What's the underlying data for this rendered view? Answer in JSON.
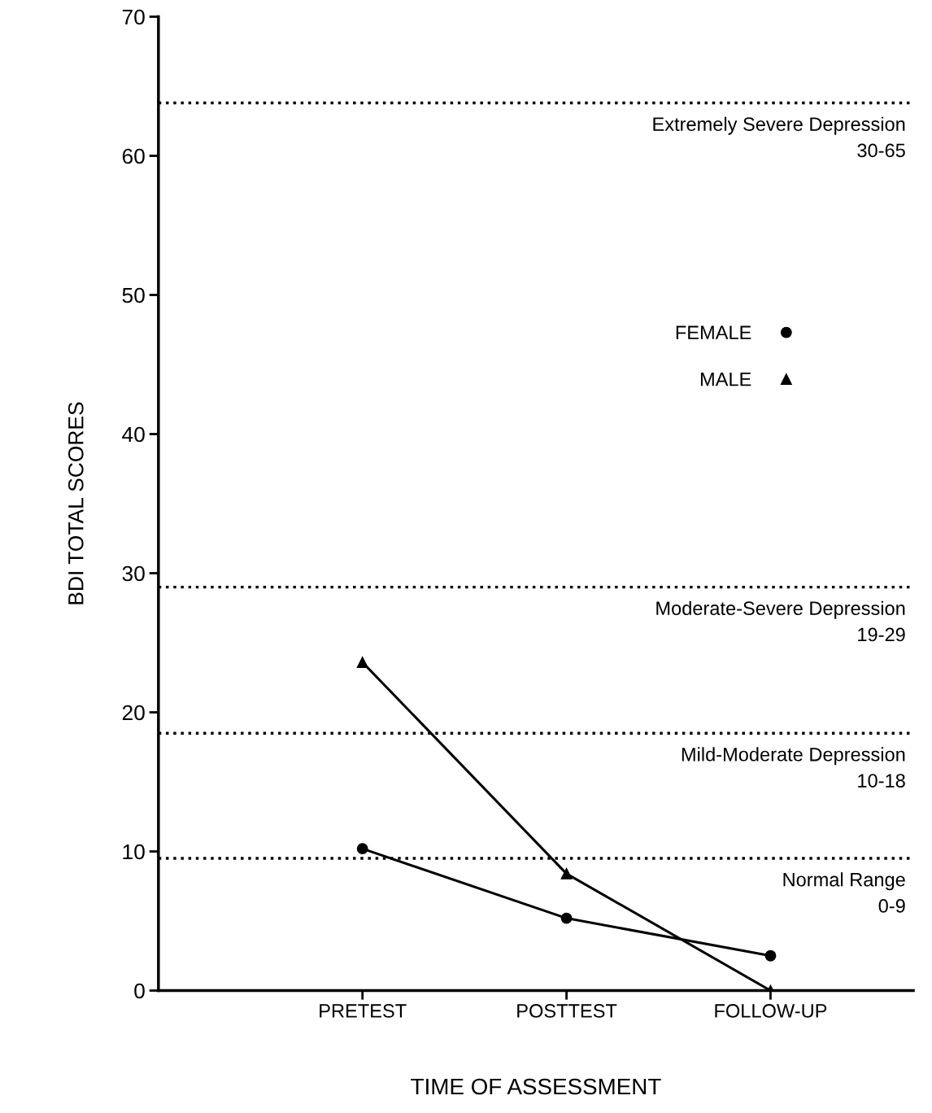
{
  "chart_data": {
    "type": "line",
    "xlabel": "TIME OF ASSESSMENT",
    "ylabel": "BDI TOTAL SCORES",
    "categories": [
      "PRETEST",
      "POSTTEST",
      "FOLLOW-UP"
    ],
    "series": [
      {
        "name": "FEMALE",
        "color": "#000000",
        "marker": "circle",
        "values": [
          10.2,
          5.2,
          2.5
        ]
      },
      {
        "name": "MALE",
        "color": "#000000",
        "marker": "triangle",
        "values": [
          23.6,
          8.4,
          0
        ]
      }
    ],
    "ylim": [
      0,
      70
    ],
    "yticks": [
      0,
      10,
      20,
      30,
      40,
      50,
      60,
      70
    ],
    "ref_lines": [
      {
        "axis": "y",
        "value": 63.8,
        "label": "Extremely Severe Depression\n30-65",
        "color": "#000000",
        "line_style": "dotted"
      },
      {
        "axis": "y",
        "value": 29,
        "label": "Moderate-Severe Depression\n19-29",
        "color": "#000000",
        "line_style": "dotted"
      },
      {
        "axis": "y",
        "value": 18.5,
        "label": "Mild-Moderate Depression\n10-18",
        "color": "#000000",
        "line_style": "dotted"
      },
      {
        "axis": "y",
        "value": 9.5,
        "label": "Normal Range\n0-9",
        "color": "#000000",
        "line_style": "dotted"
      }
    ],
    "grid": false,
    "legend": "right",
    "line_style": "solid"
  }
}
